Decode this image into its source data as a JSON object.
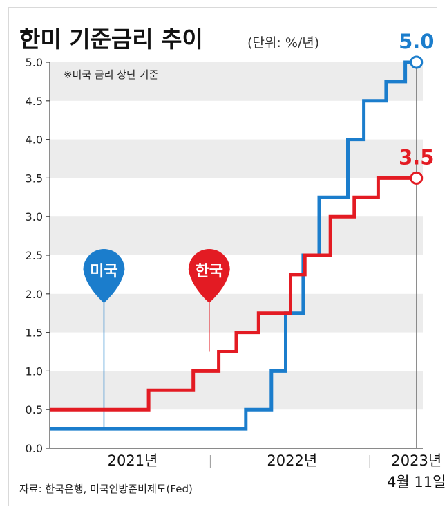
{
  "chart_data": {
    "type": "line",
    "title": "한미 기준금리 추이",
    "unit_label": "(단위: %/년)",
    "note": "※미국 금리 상단 기준",
    "source": "자료: 한국은행, 미국연방준비제도(Fed)",
    "ylim": [
      0,
      5
    ],
    "yticks": [
      "0.0",
      "0.5",
      "1.0",
      "1.5",
      "2.0",
      "2.5",
      "3.0",
      "3.5",
      "4.0",
      "4.5",
      "5.0"
    ],
    "x_labels": [
      {
        "text": "2021년",
        "x": 2021.5
      },
      {
        "text": "2022년",
        "x": 2022.5
      },
      {
        "text": "2023년",
        "x": 2023.28
      }
    ],
    "x_end_label": "4월 11일",
    "xlim": [
      2020.98,
      2023.32
    ],
    "series": [
      {
        "name": "미국",
        "color": "#1b7dcc",
        "end_label": "5.0",
        "marker_x": 2021.32,
        "points": [
          [
            2020.98,
            0.25
          ],
          [
            2022.21,
            0.25
          ],
          [
            2022.21,
            0.5
          ],
          [
            2022.37,
            0.5
          ],
          [
            2022.37,
            1.0
          ],
          [
            2022.46,
            1.0
          ],
          [
            2022.46,
            1.75
          ],
          [
            2022.57,
            1.75
          ],
          [
            2022.57,
            2.5
          ],
          [
            2022.67,
            2.5
          ],
          [
            2022.67,
            3.25
          ],
          [
            2022.85,
            3.25
          ],
          [
            2022.85,
            4.0
          ],
          [
            2022.95,
            4.0
          ],
          [
            2022.95,
            4.5
          ],
          [
            2023.09,
            4.5
          ],
          [
            2023.09,
            4.75
          ],
          [
            2023.21,
            4.75
          ],
          [
            2023.21,
            5.0
          ],
          [
            2023.28,
            5.0
          ]
        ]
      },
      {
        "name": "한국",
        "color": "#e31b23",
        "end_label": "3.5",
        "marker_x": 2021.98,
        "points": [
          [
            2020.98,
            0.5
          ],
          [
            2021.6,
            0.5
          ],
          [
            2021.6,
            0.75
          ],
          [
            2021.88,
            0.75
          ],
          [
            2021.88,
            1.0
          ],
          [
            2022.04,
            1.0
          ],
          [
            2022.04,
            1.25
          ],
          [
            2022.15,
            1.25
          ],
          [
            2022.15,
            1.5
          ],
          [
            2022.29,
            1.5
          ],
          [
            2022.29,
            1.75
          ],
          [
            2022.49,
            1.75
          ],
          [
            2022.49,
            2.25
          ],
          [
            2022.58,
            2.25
          ],
          [
            2022.58,
            2.5
          ],
          [
            2022.74,
            2.5
          ],
          [
            2022.74,
            3.0
          ],
          [
            2022.89,
            3.0
          ],
          [
            2022.89,
            3.25
          ],
          [
            2023.04,
            3.25
          ],
          [
            2023.04,
            3.5
          ],
          [
            2023.28,
            3.5
          ]
        ]
      }
    ]
  }
}
